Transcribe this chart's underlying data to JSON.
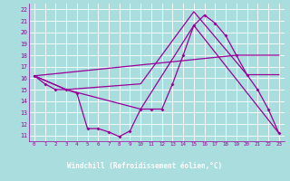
{
  "xlabel": "Windchill (Refroidissement éolien,°C)",
  "background_color": "#aadddd",
  "plot_bg": "#aadddd",
  "grid_color": "#cceeee",
  "line_color": "#990099",
  "label_bar_color": "#7700aa",
  "label_text_color": "#ffffff",
  "xlim": [
    -0.5,
    23.5
  ],
  "ylim": [
    10.5,
    22.5
  ],
  "xticks": [
    0,
    1,
    2,
    3,
    4,
    5,
    6,
    7,
    8,
    9,
    10,
    11,
    12,
    13,
    14,
    15,
    16,
    17,
    18,
    19,
    20,
    21,
    22,
    23
  ],
  "yticks": [
    11,
    12,
    13,
    14,
    15,
    16,
    17,
    18,
    19,
    20,
    21,
    22
  ],
  "main_x": [
    0,
    1,
    2,
    3,
    4,
    5,
    6,
    7,
    8,
    9,
    10,
    11,
    12,
    13,
    14,
    15,
    16,
    17,
    18,
    19,
    20,
    21,
    22,
    23
  ],
  "main_y": [
    16.2,
    15.5,
    15.0,
    15.0,
    14.7,
    11.6,
    11.6,
    11.3,
    10.9,
    11.4,
    13.3,
    13.3,
    13.3,
    15.5,
    18.0,
    20.6,
    21.5,
    20.8,
    19.7,
    18.0,
    16.3,
    15.0,
    13.3,
    11.2
  ],
  "line2_x": [
    0,
    3,
    10,
    15,
    23
  ],
  "line2_y": [
    16.2,
    15.0,
    13.3,
    20.6,
    11.2
  ],
  "line3_x": [
    0,
    3,
    10,
    15,
    20,
    23
  ],
  "line3_y": [
    16.2,
    15.0,
    15.5,
    21.8,
    16.3,
    16.3
  ],
  "line4_x": [
    0,
    19,
    23
  ],
  "line4_y": [
    16.2,
    18.0,
    18.0
  ]
}
